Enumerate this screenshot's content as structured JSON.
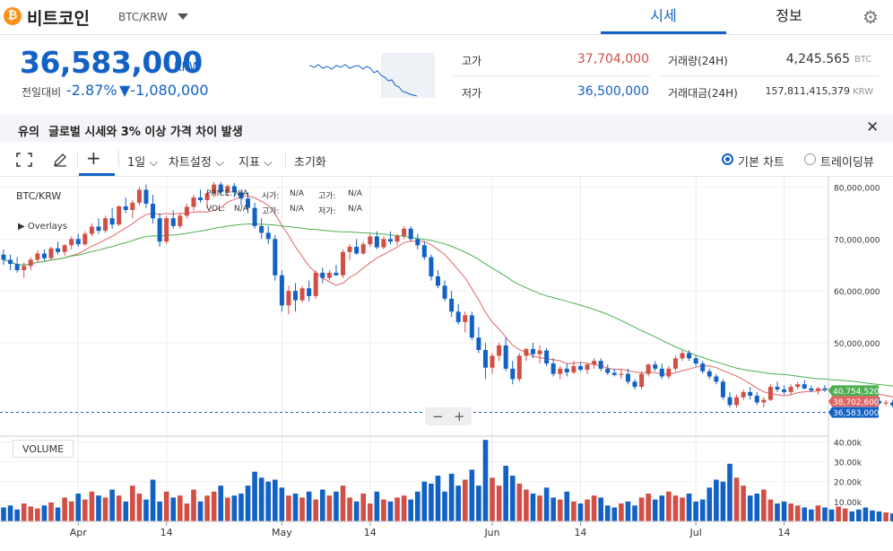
{
  "header": {
    "coin_symbol": "₿",
    "coin_name": "비트코인",
    "pair": "BTC/KRW",
    "tabs": [
      {
        "label": "시세"
      },
      {
        "label": "정보"
      }
    ],
    "settings_icon": "gear-icon"
  },
  "price": {
    "current": "36,583,000",
    "unit": "KRW",
    "change_label": "전일대비",
    "change_rate": "-2.87%",
    "change_amount": "▼-1,080,000"
  },
  "stats": {
    "high_label": "고가",
    "high_value": "37,704,000",
    "low_label": "저가",
    "low_value": "36,500,000",
    "volume_label": "거래량(24H)",
    "volume_value": "4,245.565",
    "volume_unit": "BTC",
    "amount_label": "거래대금(24H)",
    "amount_value": "157,811,415,379",
    "amount_unit": "KRW"
  },
  "notice": {
    "title": "유의",
    "text": "글로벌 시세와 3% 이상 가격 차이 발생"
  },
  "toolbar": {
    "interval": "1일",
    "chart_settings": "차트설정",
    "indicators": "지표",
    "reset": "초기화",
    "view_basic": "기본 차트",
    "view_tradingview": "트레이딩뷰"
  },
  "chart_labels": {
    "pair": "BTC/KRW",
    "overlays": "Overlays",
    "price_label": "PRICE:",
    "price_val": "N/A",
    "open_label": "시가:",
    "open_val": "N/A",
    "high_label": "고가:",
    "high_val": "N/A",
    "vol_label": "VOL:",
    "vol_val": "N/A",
    "high2_label": "고가:",
    "high2_val": "N/A",
    "low_label": "저가:",
    "low_val": "N/A",
    "volume_title": "VOLUME"
  },
  "chart_data": {
    "type": "candlestick",
    "ylim": [
      32000000,
      82000000
    ],
    "price_ticks": [
      "80,000,000",
      "70,000,000",
      "60,000,000",
      "50,000,000"
    ],
    "price_tick_values": [
      80000000,
      70000000,
      60000000,
      50000000
    ],
    "volume_ticks": [
      "40.00k",
      "30.00k",
      "20.00k",
      "10.00k"
    ],
    "volume_tick_values": [
      40000,
      30000,
      20000,
      10000
    ],
    "volume_ylim": [
      0,
      42000
    ],
    "x_labels": [
      {
        "label": "Apr",
        "day": 0
      },
      {
        "label": "14",
        "day": 13
      },
      {
        "label": "May",
        "day": 30
      },
      {
        "label": "14",
        "day": 43
      },
      {
        "label": "Jun",
        "day": 61
      },
      {
        "label": "14",
        "day": 74
      },
      {
        "label": "Jul",
        "day": 91
      },
      {
        "label": "14",
        "day": 104
      }
    ],
    "first_day_offset": -11,
    "ma_short_last": "38,702,600",
    "ma_long_last": "40,754,520",
    "current_price_label": "36,583,000",
    "ma_short_value": 38702600,
    "ma_long_value": 40754520,
    "current_price_value": 36583000,
    "colors": {
      "up": "#d24f45",
      "down": "#1261c4",
      "ma_short": "#e06666",
      "ma_long": "#4caf50"
    },
    "candles": [
      [
        67.0,
        68.0,
        65.0,
        66.0,
        7000
      ],
      [
        66.0,
        67.0,
        64.0,
        65.2,
        8000
      ],
      [
        65.2,
        66.5,
        63.5,
        64.0,
        6000
      ],
      [
        64.0,
        65.5,
        62.5,
        64.8,
        9000
      ],
      [
        64.8,
        66.5,
        64.0,
        66.0,
        7500
      ],
      [
        66.0,
        67.8,
        65.5,
        67.2,
        6500
      ],
      [
        67.2,
        68.0,
        65.8,
        66.3,
        8000
      ],
      [
        66.3,
        68.5,
        66.0,
        68.2,
        9500
      ],
      [
        68.2,
        69.5,
        67.0,
        67.5,
        7000
      ],
      [
        67.5,
        69.0,
        66.8,
        68.8,
        12000
      ],
      [
        68.8,
        70.5,
        68.0,
        70.0,
        10000
      ],
      [
        70.0,
        71.0,
        68.5,
        69.0,
        14000
      ],
      [
        69.0,
        71.5,
        68.6,
        71.0,
        11000
      ],
      [
        71.0,
        73.0,
        70.5,
        72.4,
        15000
      ],
      [
        72.4,
        74.0,
        71.0,
        71.6,
        13000
      ],
      [
        71.6,
        74.5,
        71.2,
        74.0,
        12000
      ],
      [
        74.0,
        76.0,
        72.0,
        72.8,
        16000
      ],
      [
        72.8,
        76.5,
        72.5,
        76.3,
        13000
      ],
      [
        76.3,
        78.0,
        75.0,
        75.6,
        10000
      ],
      [
        75.6,
        77.5,
        74.0,
        77.0,
        18000
      ],
      [
        77.0,
        80.0,
        76.5,
        79.5,
        14000
      ],
      [
        79.5,
        80.5,
        76.0,
        76.8,
        11000
      ],
      [
        76.8,
        78.5,
        73.0,
        74.0,
        21000
      ],
      [
        74.0,
        75.0,
        68.5,
        69.5,
        10000
      ],
      [
        69.5,
        74.5,
        69.0,
        74.0,
        15000
      ],
      [
        74.0,
        75.5,
        72.0,
        72.5,
        12000
      ],
      [
        72.5,
        75.0,
        72.0,
        74.5,
        13000
      ],
      [
        74.5,
        76.8,
        74.0,
        76.2,
        9000
      ],
      [
        76.2,
        78.5,
        75.5,
        78.0,
        16000
      ],
      [
        78.0,
        79.5,
        77.0,
        77.5,
        10000
      ],
      [
        77.5,
        79.0,
        76.0,
        78.8,
        13000
      ],
      [
        78.8,
        81.0,
        78.0,
        80.5,
        15000
      ],
      [
        80.5,
        81.0,
        78.5,
        79.0,
        18000
      ],
      [
        79.0,
        80.5,
        78.2,
        80.2,
        12000
      ],
      [
        80.2,
        80.8,
        78.0,
        79.0,
        13000
      ],
      [
        79.0,
        79.5,
        76.5,
        77.8,
        14000
      ],
      [
        77.8,
        79.0,
        75.0,
        76.0,
        18000
      ],
      [
        76.0,
        77.0,
        72.0,
        72.5,
        25000
      ],
      [
        72.5,
        74.0,
        70.0,
        71.2,
        22000
      ],
      [
        71.2,
        72.5,
        69.0,
        70.0,
        20000
      ],
      [
        70.0,
        70.8,
        62.0,
        63.0,
        21000
      ],
      [
        63.0,
        64.0,
        56.0,
        57.2,
        17000
      ],
      [
        57.2,
        61.0,
        55.5,
        60.0,
        13000
      ],
      [
        60.0,
        61.5,
        56.0,
        58.2,
        14000
      ],
      [
        58.2,
        61.0,
        57.8,
        60.5,
        12000
      ],
      [
        60.5,
        62.0,
        58.0,
        59.0,
        15000
      ],
      [
        59.0,
        64.0,
        58.5,
        63.5,
        11000
      ],
      [
        63.5,
        64.5,
        61.5,
        62.5,
        16000
      ],
      [
        62.5,
        64.0,
        62.0,
        63.5,
        13000
      ],
      [
        63.5,
        65.0,
        63.0,
        63.0,
        15000
      ],
      [
        63.0,
        68.0,
        62.5,
        67.5,
        18000
      ],
      [
        67.5,
        69.0,
        66.0,
        68.5,
        12000
      ],
      [
        68.5,
        70.0,
        67.0,
        67.2,
        10000
      ],
      [
        67.2,
        69.5,
        67.0,
        69.0,
        14000
      ],
      [
        69.0,
        71.0,
        68.5,
        70.5,
        9000
      ],
      [
        70.5,
        71.5,
        68.0,
        68.4,
        15000
      ],
      [
        68.4,
        70.5,
        68.0,
        70.0,
        11000
      ],
      [
        70.0,
        71.5,
        69.0,
        69.5,
        10000
      ],
      [
        69.5,
        71.0,
        68.8,
        70.6,
        12000
      ],
      [
        70.6,
        72.5,
        70.0,
        72.0,
        13000
      ],
      [
        72.0,
        72.5,
        69.5,
        70.0,
        11000
      ],
      [
        70.0,
        71.0,
        68.0,
        68.8,
        15000
      ],
      [
        68.8,
        69.5,
        66.0,
        66.5,
        20000
      ],
      [
        66.5,
        67.0,
        62.0,
        62.8,
        19000
      ],
      [
        62.8,
        64.0,
        60.5,
        61.0,
        23000
      ],
      [
        61.0,
        62.0,
        58.0,
        58.5,
        15000
      ],
      [
        58.5,
        60.0,
        55.0,
        56.0,
        24000
      ],
      [
        56.0,
        57.5,
        53.5,
        54.0,
        18000
      ],
      [
        54.0,
        56.0,
        52.0,
        55.3,
        21000
      ],
      [
        55.3,
        56.0,
        50.5,
        51.0,
        26000
      ],
      [
        51.0,
        53.0,
        48.0,
        48.6,
        18000
      ],
      [
        48.6,
        50.0,
        43.0,
        45.2,
        41000
      ],
      [
        45.2,
        48.0,
        44.0,
        47.5,
        22000
      ],
      [
        47.5,
        50.0,
        46.5,
        49.5,
        18000
      ],
      [
        49.5,
        51.0,
        44.5,
        45.0,
        28000
      ],
      [
        45.0,
        46.5,
        42.0,
        43.0,
        23000
      ],
      [
        43.0,
        48.0,
        42.5,
        47.5,
        19000
      ],
      [
        47.5,
        49.0,
        46.5,
        48.8,
        16000
      ],
      [
        48.8,
        50.0,
        47.0,
        47.8,
        14000
      ],
      [
        47.8,
        49.5,
        46.0,
        48.5,
        13000
      ],
      [
        48.5,
        49.0,
        45.5,
        46.0,
        17000
      ],
      [
        46.0,
        47.0,
        43.5,
        44.0,
        12000
      ],
      [
        44.0,
        45.5,
        43.0,
        45.0,
        11000
      ],
      [
        45.0,
        46.0,
        43.5,
        44.3,
        15000
      ],
      [
        44.3,
        46.5,
        44.0,
        45.5,
        10000
      ],
      [
        45.5,
        46.2,
        44.5,
        44.8,
        9000
      ],
      [
        44.8,
        46.0,
        44.0,
        45.8,
        11000
      ],
      [
        45.8,
        47.0,
        45.0,
        46.5,
        13000
      ],
      [
        46.5,
        47.0,
        44.5,
        45.0,
        12000
      ],
      [
        45.0,
        45.8,
        43.8,
        44.2,
        8000
      ],
      [
        44.2,
        45.0,
        43.5,
        43.8,
        7000
      ],
      [
        43.8,
        44.8,
        43.0,
        44.0,
        9000
      ],
      [
        44.0,
        45.0,
        42.0,
        42.5,
        10000
      ],
      [
        42.5,
        43.0,
        41.0,
        41.5,
        8000
      ],
      [
        41.5,
        44.5,
        41.0,
        44.0,
        12000
      ],
      [
        44.0,
        46.0,
        43.5,
        45.8,
        14000
      ],
      [
        45.8,
        46.5,
        44.5,
        45.0,
        11000
      ],
      [
        45.0,
        46.0,
        43.0,
        43.5,
        13000
      ],
      [
        43.5,
        45.5,
        43.0,
        45.0,
        15000
      ],
      [
        45.0,
        47.5,
        44.5,
        47.0,
        13000
      ],
      [
        47.0,
        48.5,
        46.5,
        48.0,
        12000
      ],
      [
        48.0,
        48.6,
        46.5,
        47.0,
        14000
      ],
      [
        47.0,
        47.5,
        45.5,
        46.0,
        10000
      ],
      [
        46.0,
        46.5,
        44.0,
        44.5,
        11000
      ],
      [
        44.5,
        45.0,
        43.0,
        43.5,
        17000
      ],
      [
        43.5,
        44.0,
        42.0,
        42.5,
        21000
      ],
      [
        42.5,
        43.0,
        39.0,
        39.5,
        20000
      ],
      [
        39.5,
        40.5,
        37.5,
        38.0,
        29000
      ],
      [
        38.0,
        40.0,
        37.5,
        39.5,
        22000
      ],
      [
        39.5,
        41.0,
        39.0,
        40.5,
        18000
      ],
      [
        40.5,
        41.5,
        39.0,
        39.8,
        13000
      ],
      [
        39.8,
        40.5,
        38.0,
        38.5,
        14000
      ],
      [
        38.5,
        39.5,
        37.5,
        39.0,
        16000
      ],
      [
        39.0,
        42.0,
        38.8,
        41.5,
        11000
      ],
      [
        41.5,
        42.5,
        40.5,
        41.0,
        9000
      ],
      [
        41.0,
        41.8,
        40.0,
        40.5,
        10000
      ],
      [
        40.5,
        42.0,
        40.0,
        41.5,
        9000
      ],
      [
        41.5,
        42.5,
        41.0,
        42.0,
        8000
      ],
      [
        42.0,
        42.8,
        41.0,
        41.2,
        7000
      ],
      [
        41.2,
        41.8,
        40.5,
        40.8,
        6000
      ],
      [
        40.8,
        41.5,
        40.0,
        41.2,
        8000
      ],
      [
        41.2,
        41.8,
        40.5,
        40.9,
        7000
      ],
      [
        40.9,
        41.4,
        40.0,
        40.4,
        6000
      ],
      [
        40.4,
        41.0,
        39.8,
        40.8,
        7500
      ],
      [
        40.8,
        41.5,
        40.2,
        41.0,
        6500
      ],
      [
        41.0,
        41.6,
        40.3,
        40.5,
        5000
      ],
      [
        40.5,
        41.0,
        39.5,
        39.8,
        6000
      ],
      [
        39.8,
        40.5,
        39.0,
        39.2,
        7000
      ],
      [
        39.2,
        39.8,
        38.5,
        38.8,
        5500
      ],
      [
        38.8,
        39.5,
        38.0,
        38.3,
        5000
      ],
      [
        38.3,
        39.0,
        37.8,
        38.5,
        4500
      ],
      [
        38.5,
        39.0,
        37.6,
        37.9,
        4000
      ],
      [
        37.9,
        38.6,
        37.5,
        38.1,
        3500
      ],
      [
        38.1,
        38.5,
        36.5,
        36.6,
        3000
      ]
    ]
  }
}
